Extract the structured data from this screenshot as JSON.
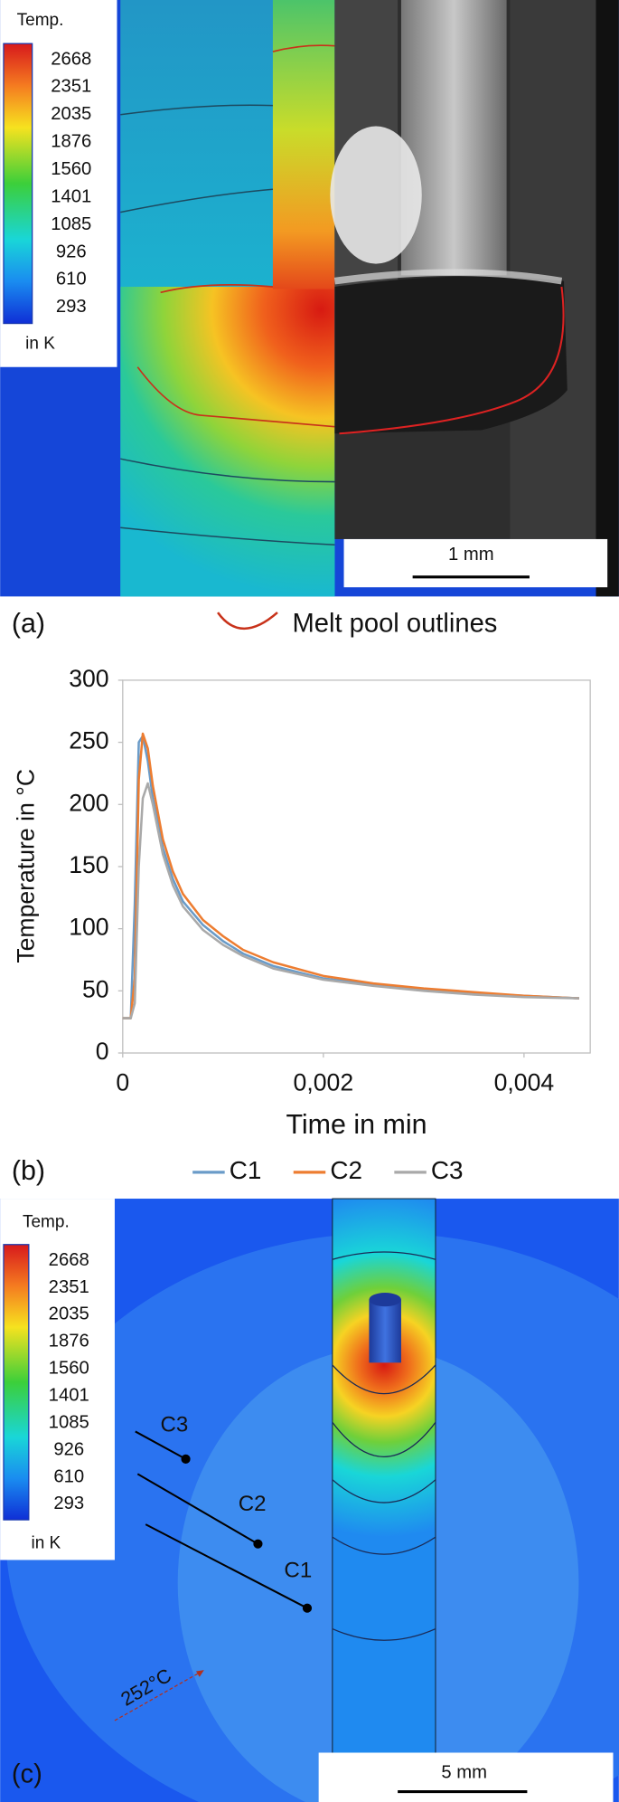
{
  "panel_a": {
    "colorbar": {
      "title": "Temp.",
      "ticks": [
        2668,
        2351,
        2035,
        1876,
        1560,
        1401,
        1085,
        926,
        610,
        293
      ],
      "unit": "in K"
    },
    "scale_bar": "1 mm",
    "label": "(a)",
    "legend": "Melt pool outlines"
  },
  "chart_data": {
    "type": "line",
    "label": "(b)",
    "x_label": "Time in min",
    "y_label": "Temperature in °C",
    "x": [
      0,
      8e-05,
      0.00012,
      0.00016,
      0.0002,
      0.00025,
      0.0003,
      0.0004,
      0.0005,
      0.0006,
      0.0008,
      0.001,
      0.0012,
      0.0015,
      0.002,
      0.0025,
      0.003,
      0.0035,
      0.004,
      0.00455
    ],
    "series": [
      {
        "name": "C1",
        "color": "#6a9bc8",
        "values": [
          28,
          28,
          120,
          250,
          255,
          235,
          205,
          165,
          140,
          122,
          103,
          90,
          80,
          70,
          60,
          55,
          51,
          48,
          46,
          44
        ]
      },
      {
        "name": "C2",
        "color": "#ed7d31",
        "values": [
          28,
          28,
          60,
          220,
          257,
          245,
          215,
          172,
          146,
          128,
          107,
          94,
          83,
          73,
          62,
          56,
          52,
          49,
          46,
          44
        ]
      },
      {
        "name": "C3",
        "color": "#a9a9a9",
        "values": [
          28,
          28,
          40,
          150,
          205,
          217,
          200,
          160,
          135,
          118,
          99,
          87,
          78,
          68,
          59,
          54,
          50,
          47,
          45,
          44
        ]
      }
    ],
    "xlim": [
      0,
      0.00466
    ],
    "xticks": [
      0,
      {
        "value": 0.002,
        "label": "0,002"
      },
      {
        "value": 0.004,
        "label": "0,004"
      }
    ],
    "ylim": [
      0,
      300
    ],
    "yticks": [
      0,
      50,
      100,
      150,
      200,
      250,
      300
    ],
    "grid": false
  },
  "panel_c": {
    "colorbar": {
      "title": "Temp.",
      "ticks": [
        2668,
        2351,
        2035,
        1876,
        1560,
        1401,
        1085,
        926,
        610,
        293
      ],
      "unit": "in K"
    },
    "points": [
      "C3",
      "C2",
      "C1"
    ],
    "isotherm": "252°C",
    "scale_bar": "5 mm",
    "label": "(c)"
  }
}
